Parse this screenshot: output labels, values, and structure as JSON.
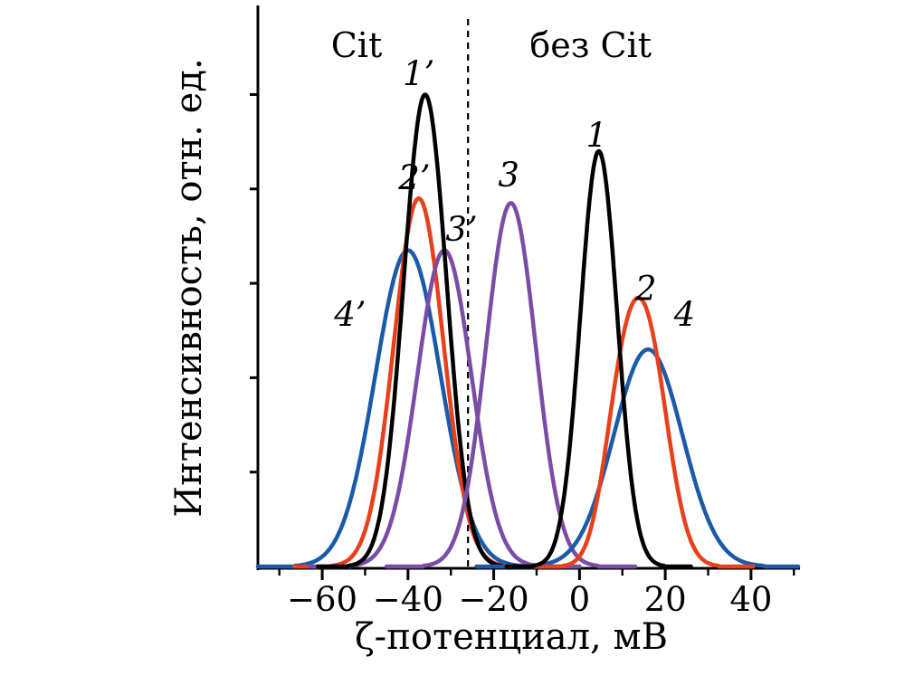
{
  "chart_data": {
    "type": "line",
    "title": "",
    "xlabel": "ζ-потенциал, мВ",
    "ylabel": "Интенсивность, отн. ед.",
    "xlim": [
      -75,
      51
    ],
    "ylim": [
      0,
      1.185
    ],
    "grid": false,
    "legend_position": "none",
    "x_ticks": [
      {
        "value": -60,
        "label": "−60"
      },
      {
        "value": -40,
        "label": "−40"
      },
      {
        "value": -20,
        "label": "−20"
      },
      {
        "value": 0,
        "label": "0"
      },
      {
        "value": 20,
        "label": "20"
      },
      {
        "value": 40,
        "label": "40"
      }
    ],
    "x_minor_ticks": [
      -70,
      -50,
      -30,
      -10,
      10,
      30,
      50
    ],
    "y_minor_ticks": [
      0.2,
      0.4,
      0.6,
      0.8,
      1.0
    ],
    "divider": {
      "x": -26,
      "y_top": 1.166,
      "style": "dashed",
      "color": "#000000"
    },
    "region_labels": [
      {
        "id": "cit",
        "text": "Cit",
        "x": -52,
        "y": 1.08
      },
      {
        "id": "bez-cit",
        "text": "без Cit",
        "x": 2.6,
        "y": 1.08
      }
    ],
    "series": [
      {
        "id": "4-prime",
        "group": "Cit",
        "color": "#1b5aa8",
        "peaks": [
          {
            "center": -40,
            "sigma": 7.6,
            "amplitude": 0.67
          }
        ],
        "label": {
          "text": "4’",
          "x": -53.5,
          "y": 0.51
        }
      },
      {
        "id": "2-prime",
        "group": "Cit",
        "color": "#e8401b",
        "peaks": [
          {
            "center": -37.5,
            "sigma": 5.8,
            "amplitude": 0.78
          }
        ],
        "label": {
          "text": "2’",
          "x": -38.5,
          "y": 0.8
        }
      },
      {
        "id": "3-prime",
        "group": "Cit",
        "color": "#7b4ca5",
        "peaks": [
          {
            "center": -31.5,
            "sigma": 6.3,
            "amplitude": 0.67
          }
        ],
        "label": {
          "text": "3’",
          "x": -27.5,
          "y": 0.69
        }
      },
      {
        "id": "1-prime",
        "group": "Cit",
        "color": "#000000",
        "peaks": [
          {
            "center": -36,
            "sigma": 5.0,
            "amplitude": 1.0
          }
        ],
        "label": {
          "text": "1’",
          "x": -37.5,
          "y": 1.02
        }
      },
      {
        "id": "3",
        "group": "без Cit",
        "color": "#7b4ca5",
        "peaks": [
          {
            "center": -16,
            "sigma": 5.8,
            "amplitude": 0.77
          }
        ],
        "label": {
          "text": "3",
          "x": -16.5,
          "y": 0.805
        }
      },
      {
        "id": "4",
        "group": "без Cit",
        "color": "#1b5aa8",
        "peaks": [
          {
            "center": 16,
            "sigma": 8.0,
            "amplitude": 0.46
          }
        ],
        "label": {
          "text": "4",
          "x": 24.5,
          "y": 0.51
        }
      },
      {
        "id": "2",
        "group": "без Cit",
        "color": "#e8401b",
        "peaks": [
          {
            "center": 15.5,
            "sigma": 5.0,
            "amplitude": 0.49
          },
          {
            "center": 9,
            "sigma": 4.0,
            "amplitude": 0.22
          }
        ],
        "label": {
          "text": "2",
          "x": 15.5,
          "y": 0.565
        }
      },
      {
        "id": "1",
        "group": "без Cit",
        "color": "#000000",
        "peaks": [
          {
            "center": 4.5,
            "sigma": 4.3,
            "amplitude": 0.88
          }
        ],
        "label": {
          "text": "1",
          "x": 4,
          "y": 0.89
        }
      }
    ]
  }
}
